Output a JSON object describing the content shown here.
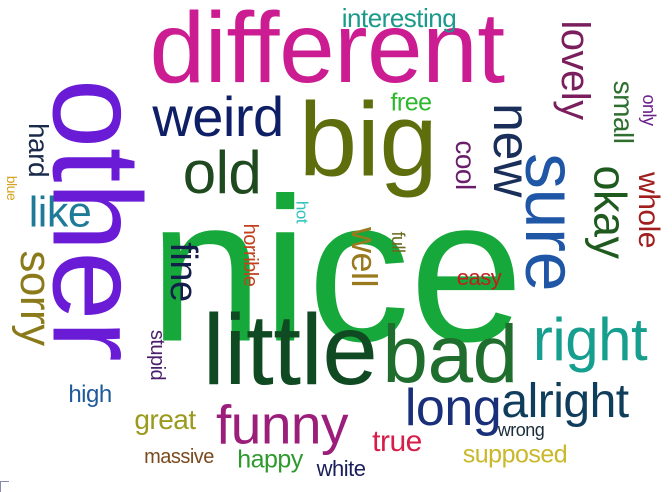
{
  "words": [
    {
      "text": "nice",
      "color": "#16a83a",
      "rotate": 0
    },
    {
      "text": "other",
      "color": "#6a1bd6",
      "rotate": 90
    },
    {
      "text": "different",
      "color": "#cc1c92",
      "rotate": 0
    },
    {
      "text": "big",
      "color": "#5e6e0c",
      "rotate": 0
    },
    {
      "text": "little",
      "color": "#0f4a22",
      "rotate": 0
    },
    {
      "text": "bad",
      "color": "#1f6e2e",
      "rotate": 0
    },
    {
      "text": "sure",
      "color": "#1f56a6",
      "rotate": 90
    },
    {
      "text": "weird",
      "color": "#0e1f66",
      "rotate": 0
    },
    {
      "text": "old",
      "color": "#1f4a1f",
      "rotate": 0
    },
    {
      "text": "right",
      "color": "#169e8e",
      "rotate": 0
    },
    {
      "text": "long",
      "color": "#1a2f7a",
      "rotate": 0
    },
    {
      "text": "alright",
      "color": "#0f3d5c",
      "rotate": 0
    },
    {
      "text": "funny",
      "color": "#9a1e7a",
      "rotate": 0
    },
    {
      "text": "new",
      "color": "#1a2e5a",
      "rotate": 90
    },
    {
      "text": "lovely",
      "color": "#7a1e5e",
      "rotate": 90
    },
    {
      "text": "okay",
      "color": "#1f5a1f",
      "rotate": 90
    },
    {
      "text": "sorry",
      "color": "#8a7a1a",
      "rotate": 90
    },
    {
      "text": "like",
      "color": "#1f7a9a",
      "rotate": 0
    },
    {
      "text": "fine",
      "color": "#141e4a",
      "rotate": 90
    },
    {
      "text": "whole",
      "color": "#a01e1e",
      "rotate": 90
    },
    {
      "text": "small",
      "color": "#2e6e2e",
      "rotate": 90
    },
    {
      "text": "interesting",
      "color": "#1a9a8a",
      "rotate": 0
    },
    {
      "text": "cool",
      "color": "#6a1e6a",
      "rotate": 90
    },
    {
      "text": "well",
      "color": "#9a7a1e",
      "rotate": 90
    },
    {
      "text": "great",
      "color": "#9a9a1e",
      "rotate": 0
    },
    {
      "text": "true",
      "color": "#d61e4a",
      "rotate": 0
    },
    {
      "text": "happy",
      "color": "#2e9a2e",
      "rotate": 0
    },
    {
      "text": "supposed",
      "color": "#c9b82a",
      "rotate": 0
    },
    {
      "text": "hard",
      "color": "#1a2a4a",
      "rotate": 90
    },
    {
      "text": "high",
      "color": "#1f5a9a",
      "rotate": 0
    },
    {
      "text": "free",
      "color": "#2eb82e",
      "rotate": 0
    },
    {
      "text": "easy",
      "color": "#c21e1e",
      "rotate": 0
    },
    {
      "text": "white",
      "color": "#1a1e5a",
      "rotate": 0
    },
    {
      "text": "massive",
      "color": "#7a4a1e",
      "rotate": 0
    },
    {
      "text": "wrong",
      "color": "#1a2e3a",
      "rotate": 0
    },
    {
      "text": "only",
      "color": "#6a1e8a",
      "rotate": 90
    },
    {
      "text": "horrible",
      "color": "#c2401e",
      "rotate": 90
    },
    {
      "text": "stupid",
      "color": "#4a1e6a",
      "rotate": 90
    },
    {
      "text": "full",
      "color": "#6a6a1e",
      "rotate": 90
    },
    {
      "text": "hot",
      "color": "#2ec2b8",
      "rotate": 90
    },
    {
      "text": "blue",
      "color": "#d6a21e",
      "rotate": 90
    }
  ]
}
